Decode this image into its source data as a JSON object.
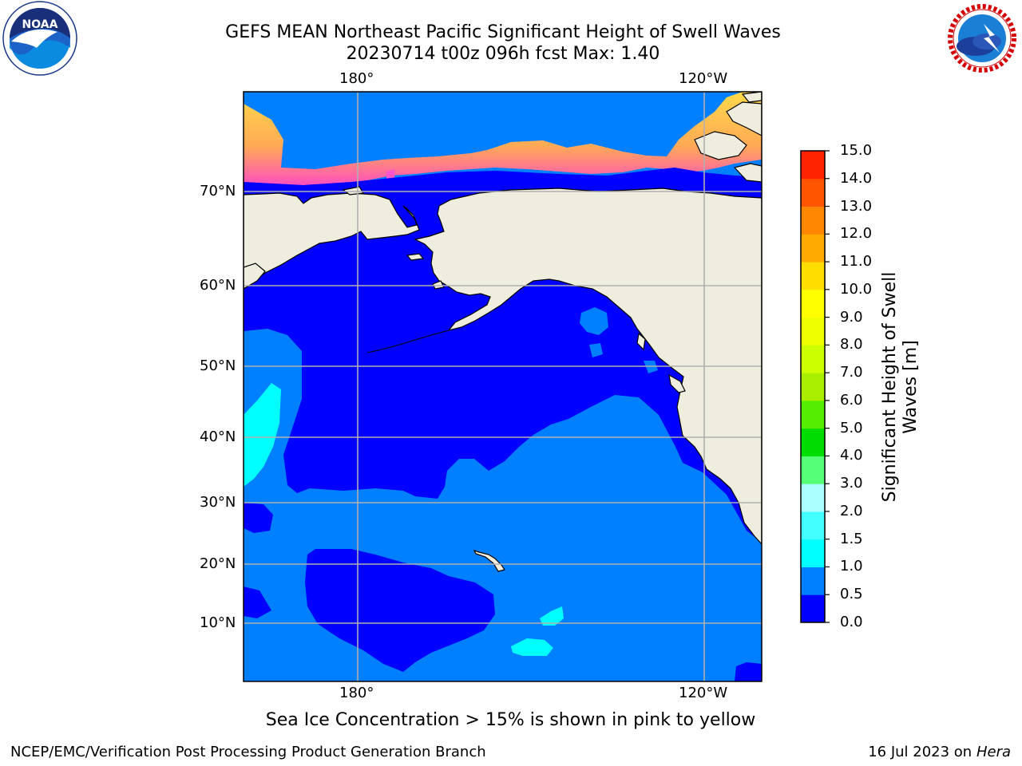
{
  "title": {
    "line1": "GEFS MEAN Northeast Pacific Significant Height of Swell Waves",
    "line2": "20230714 t00z 096h fcst   Max: 1.40"
  },
  "logos": {
    "noaa_text": "NOAA",
    "noaa_ring": "NATIONAL OCEANIC AND ATMOSPHERIC ADMINISTRATION · U.S. DEPARTMENT OF COMMERCE",
    "nws_ring": "NATIONAL WEATHER SERVICE"
  },
  "map": {
    "lon_ticks_top": [
      "180°",
      "120°W"
    ],
    "lon_ticks_bottom": [
      "180°",
      "120°W"
    ],
    "lat_ticks": [
      "70°N",
      "60°N",
      "50°N",
      "40°N",
      "30°N",
      "20°N",
      "10°N"
    ],
    "colors": {
      "land": "#efedde",
      "band_0_0.5": "#0000ff",
      "band_0.5_1.0": "#0080ff",
      "band_1.0_1.5": "#00ffff",
      "sea_ice_low": "#ff44cc",
      "sea_ice_high": "#ffd700",
      "grid": "#b0b0b0"
    }
  },
  "colorbar": {
    "label_line1": "Significant Height of Swell",
    "label_line2": "Waves [m]",
    "ticks": [
      "0.0",
      "0.5",
      "1.0",
      "1.5",
      "2.0",
      "3.0",
      "4.0",
      "5.0",
      "6.0",
      "7.0",
      "8.0",
      "9.0",
      "10.0",
      "11.0",
      "12.0",
      "13.0",
      "14.0",
      "15.0"
    ],
    "colors": [
      "#0000ff",
      "#0080ff",
      "#00ffff",
      "#44ffff",
      "#aaffff",
      "#55ff77",
      "#00dd00",
      "#55ee00",
      "#aaee00",
      "#ccff00",
      "#eeff00",
      "#ffff00",
      "#ffdd00",
      "#ffaa00",
      "#ff8800",
      "#ff5500",
      "#ff2200"
    ]
  },
  "caption": "Sea Ice Concentration > 15% is shown in pink to yellow",
  "footer": {
    "left": "NCEP/EMC/Verification Post Processing Product Generation Branch",
    "right_prefix": "16 Jul 2023 on ",
    "right_host": "Hera"
  }
}
